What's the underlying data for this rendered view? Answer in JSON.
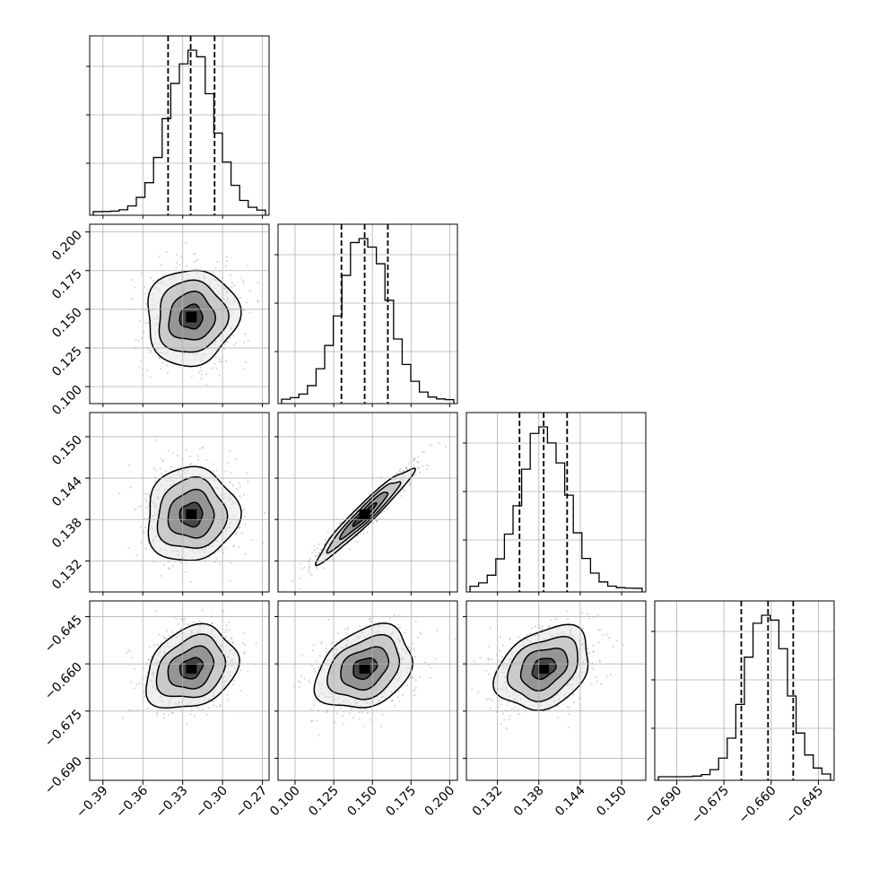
{
  "chart_data": {
    "type": "corner",
    "grid": true,
    "parameters": [
      {
        "index": 0,
        "range": [
          -0.4,
          -0.265
        ],
        "mean": -0.3235,
        "sd": 0.0172,
        "quantiles": [
          -0.341,
          -0.324,
          -0.306
        ],
        "ticks": [
          -0.39,
          -0.36,
          -0.33,
          -0.3,
          -0.27
        ],
        "tick_labels": [
          "−0.39",
          "−0.36",
          "−0.33",
          "−0.30",
          "−0.27"
        ]
      },
      {
        "index": 1,
        "range": [
          0.089,
          0.205
        ],
        "mean": 0.145,
        "sd": 0.0155,
        "quantiles": [
          0.13,
          0.145,
          0.16
        ],
        "ticks": [
          0.1,
          0.125,
          0.15,
          0.175,
          0.2
        ],
        "tick_labels": [
          "0.100",
          "0.125",
          "0.150",
          "0.175",
          "0.200"
        ]
      },
      {
        "index": 2,
        "range": [
          0.1275,
          0.1535
        ],
        "mean": 0.1387,
        "sd": 0.0034,
        "quantiles": [
          0.1352,
          0.1387,
          0.1421
        ],
        "ticks": [
          0.132,
          0.138,
          0.144,
          0.15
        ],
        "tick_labels": [
          "0.132",
          "0.138",
          "0.144",
          "0.150"
        ]
      },
      {
        "index": 3,
        "range": [
          -0.697,
          -0.64
        ],
        "mean": -0.6614,
        "sd": 0.0066,
        "quantiles": [
          -0.6695,
          -0.661,
          -0.653
        ],
        "ticks": [
          -0.69,
          -0.675,
          -0.66,
          -0.645
        ],
        "tick_labels": [
          "−0.690",
          "−0.675",
          "−0.660",
          "−0.645"
        ]
      }
    ],
    "correlations": [
      {
        "pair": [
          0,
          1
        ],
        "rho": 0.05
      },
      {
        "pair": [
          0,
          2
        ],
        "rho": 0.05
      },
      {
        "pair": [
          0,
          3
        ],
        "rho": 0.25
      },
      {
        "pair": [
          1,
          2
        ],
        "rho": 0.96
      },
      {
        "pair": [
          1,
          3
        ],
        "rho": 0.3
      },
      {
        "pair": [
          2,
          3
        ],
        "rho": 0.3
      }
    ],
    "histogram_bins": 20,
    "contour_levels_sigma": [
      0.5,
      1.0,
      1.5,
      2.0
    ],
    "colors": {
      "line": "#000000",
      "grid": "#b0b0b0",
      "points": "#7a7a7a",
      "frame": "#000000"
    }
  }
}
